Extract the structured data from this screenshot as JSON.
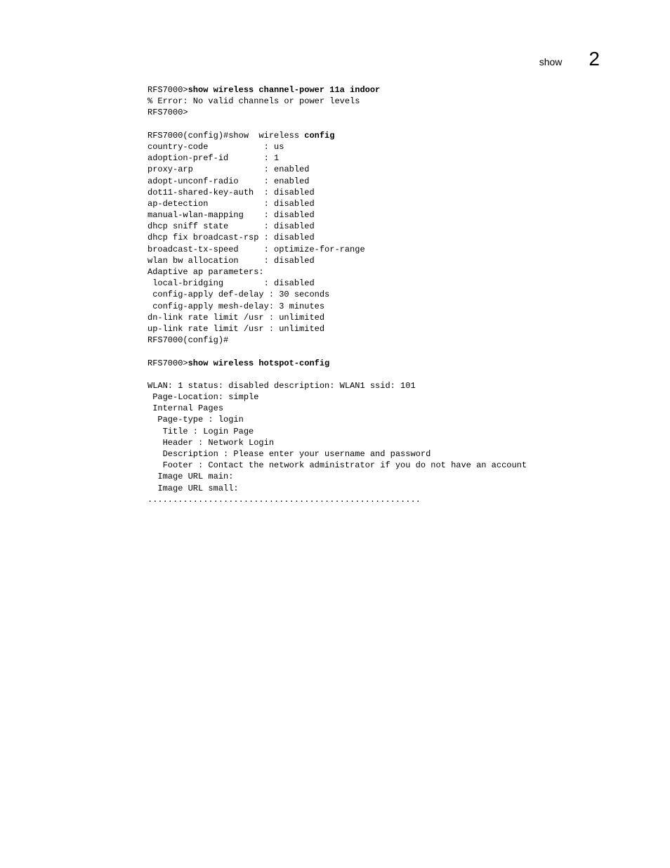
{
  "header": {
    "label": "show",
    "chapter": "2"
  },
  "cmd1": {
    "prompt": "RFS7000>",
    "command": "show wireless channel-power 11a indoor",
    "error": "% Error: No valid channels or power levels",
    "prompt_after": "RFS7000>"
  },
  "cmd2": {
    "prompt": "RFS7000(config)#show  wireless ",
    "command_bold": "config",
    "rows": [
      {
        "k": "country-code           ",
        "v": ": us"
      },
      {
        "k": "adoption-pref-id       ",
        "v": ": 1"
      },
      {
        "k": "proxy-arp              ",
        "v": ": enabled"
      },
      {
        "k": "adopt-unconf-radio     ",
        "v": ": enabled"
      },
      {
        "k": "dot11-shared-key-auth  ",
        "v": ": disabled"
      },
      {
        "k": "ap-detection           ",
        "v": ": disabled"
      },
      {
        "k": "manual-wlan-mapping    ",
        "v": ": disabled"
      },
      {
        "k": "dhcp sniff state       ",
        "v": ": disabled"
      },
      {
        "k": "dhcp fix broadcast-rsp ",
        "v": ": disabled"
      },
      {
        "k": "broadcast-tx-speed     ",
        "v": ": optimize-for-range"
      },
      {
        "k": "wlan bw allocation     ",
        "v": ": disabled"
      }
    ],
    "adaptive_header": "Adaptive ap parameters:",
    "adaptive_rows": [
      {
        "k": " local-bridging        ",
        "v": ": disabled"
      },
      {
        "k": " config-apply def-delay ",
        "v": ": 30 seconds"
      },
      {
        "k": " config-apply mesh-delay",
        "v": ": 3 minutes"
      }
    ],
    "link_rows": [
      {
        "k": "dn-link rate limit /usr ",
        "v": ": unlimited"
      },
      {
        "k": "up-link rate limit /usr ",
        "v": ": unlimited"
      }
    ],
    "prompt_after": "RFS7000(config)#"
  },
  "cmd3": {
    "prompt": "RFS7000>",
    "command": "show wireless hotspot-config",
    "body": [
      "WLAN: 1 status: disabled description: WLAN1 ssid: 101",
      " Page-Location: simple",
      " Internal Pages",
      "  Page-type : login",
      "   Title : Login Page",
      "   Header : Network Login",
      "   Description : Please enter your username and password",
      "   Footer : Contact the network administrator if you do not have an account",
      "  Image URL main:",
      "  Image URL small:",
      "......................................................"
    ]
  }
}
